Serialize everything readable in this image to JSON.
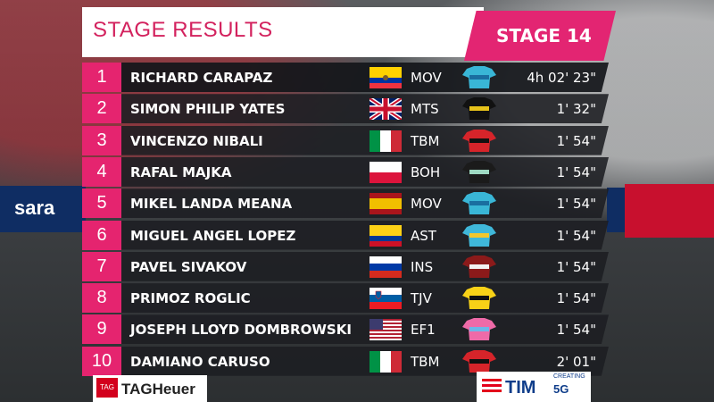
{
  "header": {
    "title": "STAGE RESULTS",
    "stage": "STAGE 14"
  },
  "results": [
    {
      "pos": "1",
      "name": "RICHARD CARAPAZ",
      "flag": "ecuador",
      "team": "MOV",
      "jersey": "movistar",
      "time": "4h 02' 23\""
    },
    {
      "pos": "2",
      "name": "SIMON PHILIP YATES",
      "flag": "uk",
      "team": "MTS",
      "jersey": "mitchelton",
      "time": "1' 32\""
    },
    {
      "pos": "3",
      "name": "VINCENZO NIBALI",
      "flag": "italy",
      "team": "TBM",
      "jersey": "bahrain",
      "time": "1' 54\""
    },
    {
      "pos": "4",
      "name": "RAFAL MAJKA",
      "flag": "poland",
      "team": "BOH",
      "jersey": "bora",
      "time": "1' 54\""
    },
    {
      "pos": "5",
      "name": "MIKEL LANDA MEANA",
      "flag": "spain",
      "team": "MOV",
      "jersey": "movistar",
      "time": "1' 54\""
    },
    {
      "pos": "6",
      "name": "MIGUEL ANGEL LOPEZ",
      "flag": "colombia",
      "team": "AST",
      "jersey": "astana",
      "time": "1' 54\""
    },
    {
      "pos": "7",
      "name": "PAVEL SIVAKOV",
      "flag": "russia",
      "team": "INS",
      "jersey": "ineos",
      "time": "1' 54\""
    },
    {
      "pos": "8",
      "name": "PRIMOZ ROGLIC",
      "flag": "slovenia",
      "team": "TJV",
      "jersey": "jumbo",
      "time": "1' 54\""
    },
    {
      "pos": "9",
      "name": "JOSEPH LLOYD DOMBROWSKI",
      "flag": "usa",
      "team": "EF1",
      "jersey": "ef",
      "time": "1' 54\""
    },
    {
      "pos": "10",
      "name": "DAMIANO CARUSO",
      "flag": "italy",
      "team": "TBM",
      "jersey": "bahrain",
      "time": "2' 01\""
    }
  ],
  "sponsors": {
    "left": "TAGHeuer",
    "left_logo": "TAG",
    "right": "TIM",
    "right_sub": "CREATING",
    "right_5g": "5G"
  },
  "background": {
    "left_board": "sara"
  },
  "colors": {
    "accent": "#e5246f",
    "row_bg": "#1c1e22",
    "title_text": "#d3225e"
  }
}
